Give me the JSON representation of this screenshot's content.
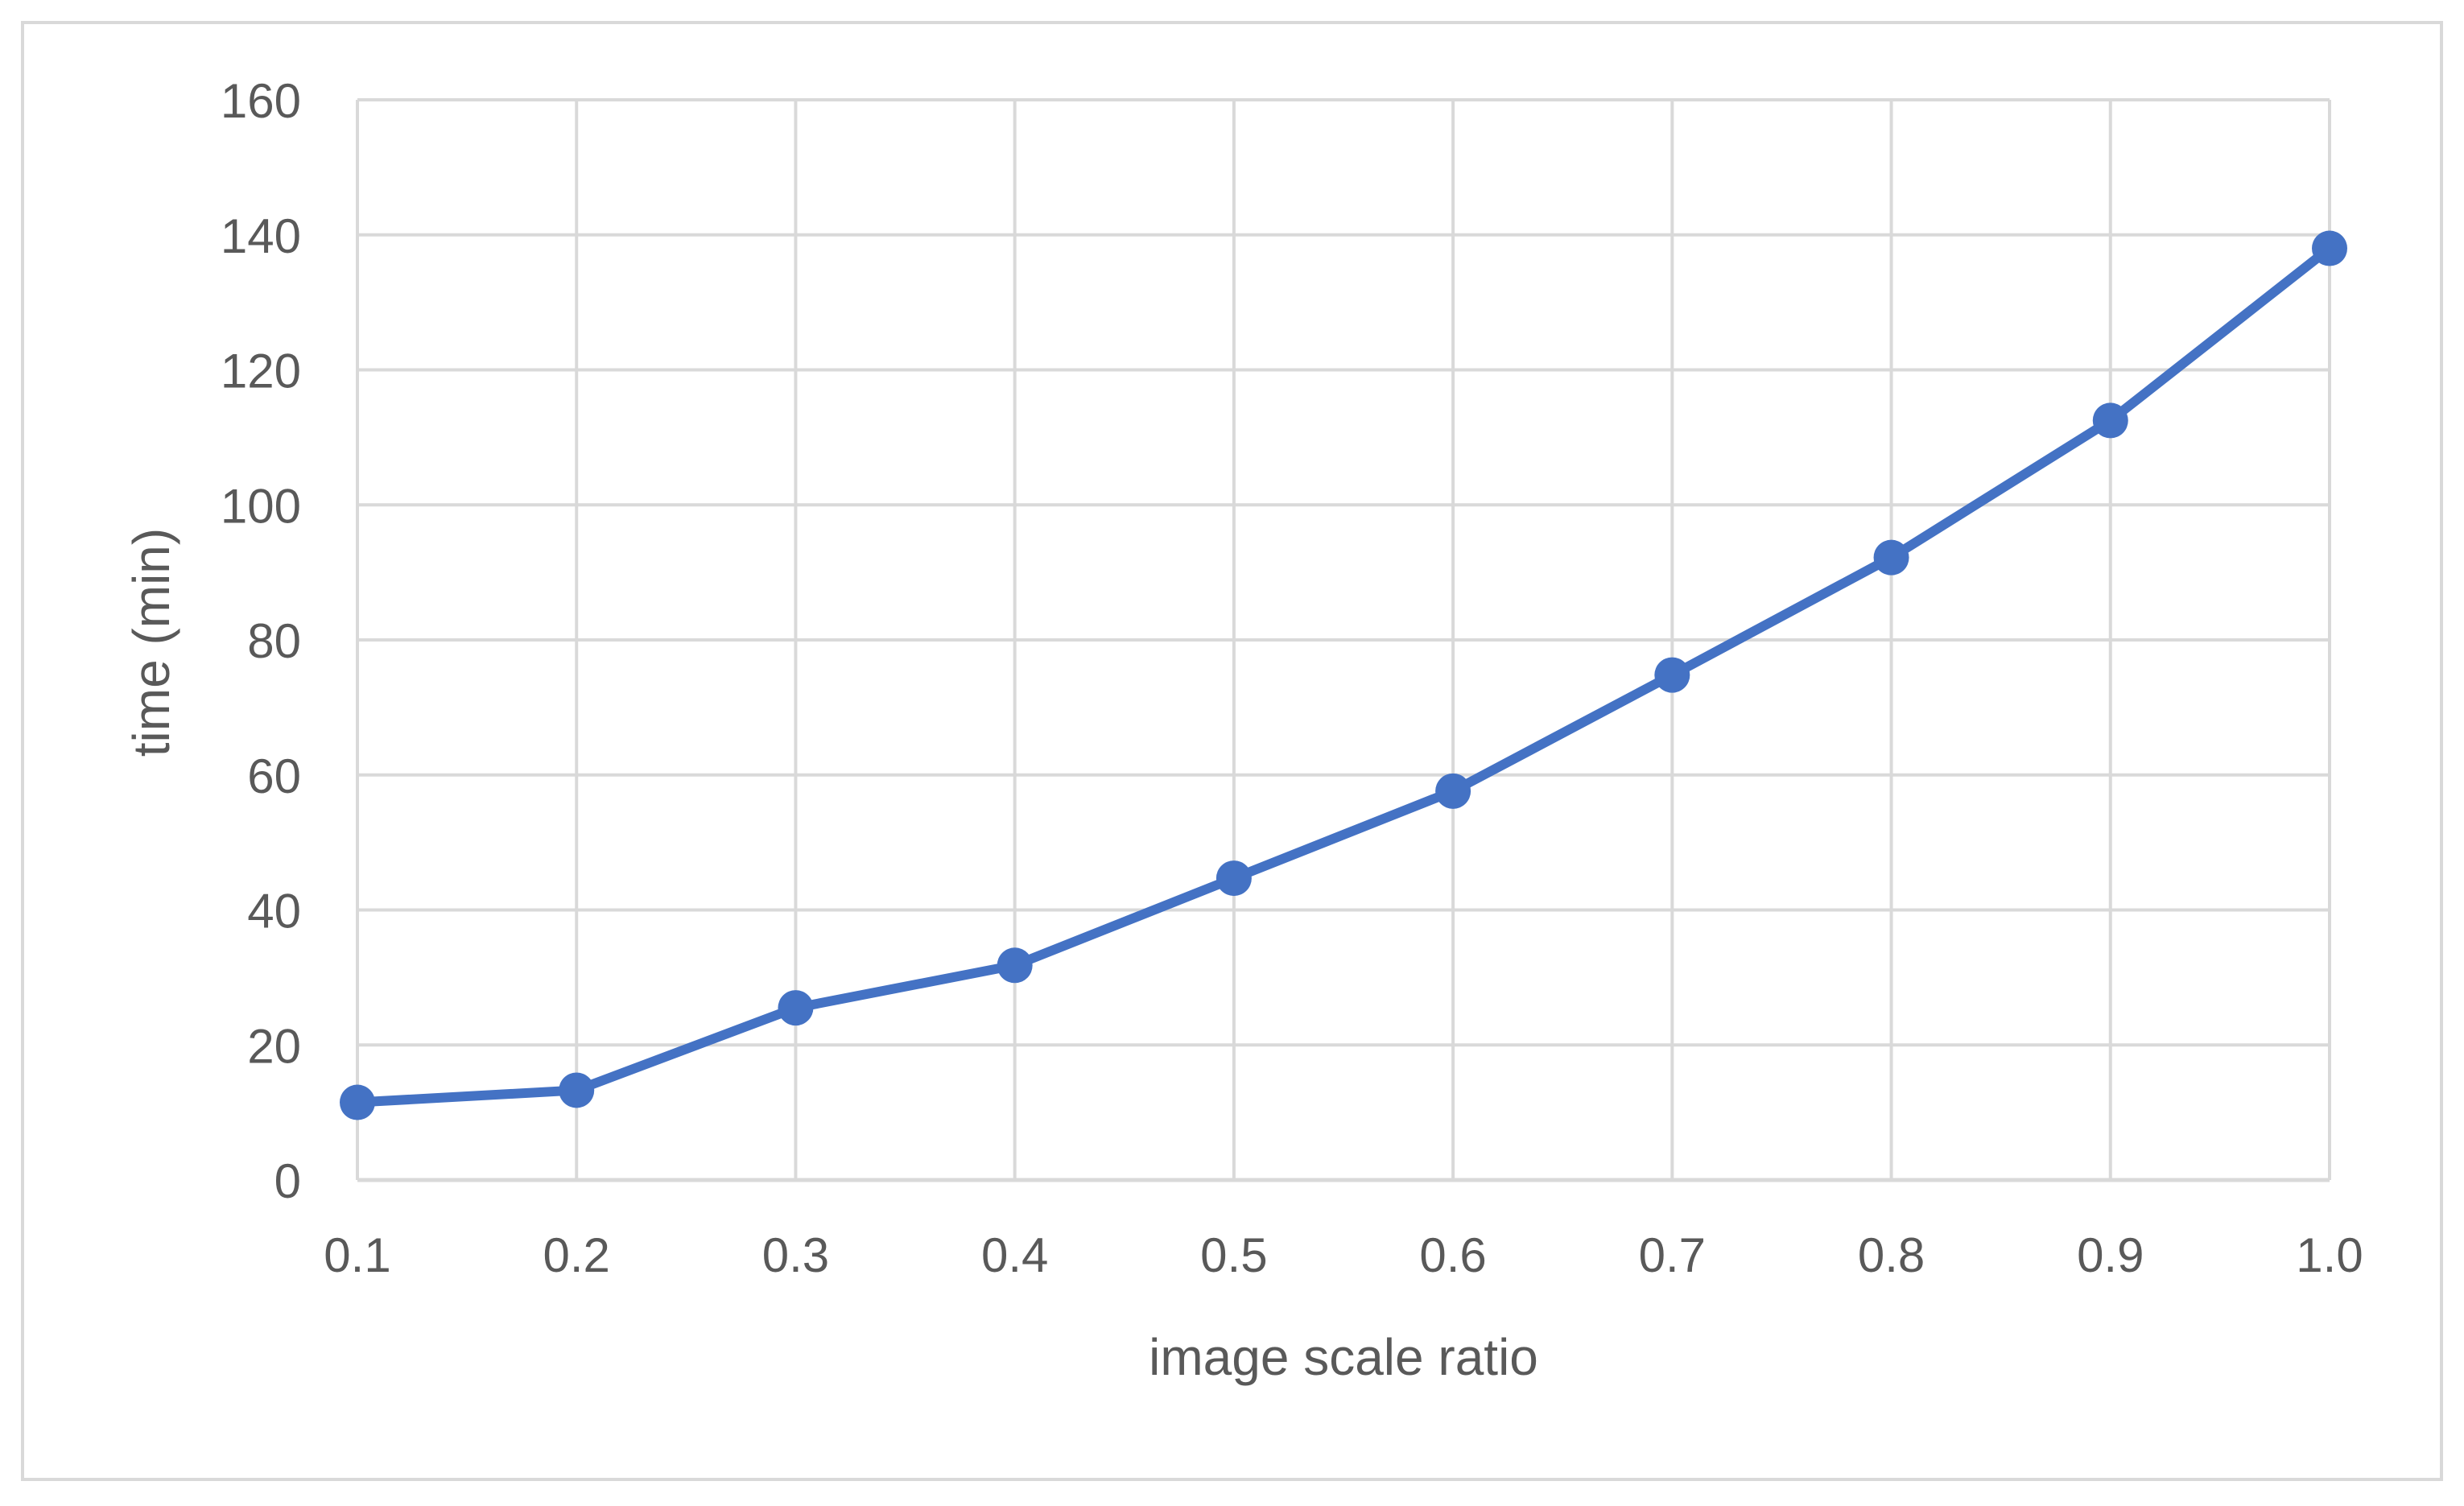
{
  "chart_data": {
    "type": "line",
    "title": "",
    "xlabel": "image scale ratio",
    "ylabel": "time (min)",
    "x": [
      0.1,
      0.2,
      0.3,
      0.4,
      0.5,
      0.6,
      0.7,
      0.8,
      0.9,
      1.0
    ],
    "x_tick_labels": [
      "0.1",
      "0.2",
      "0.3",
      "0.4",
      "0.5",
      "0.6",
      "0.7",
      "0.8",
      "0.9",
      "1.0"
    ],
    "y_ticks": [
      0,
      20,
      40,
      60,
      80,
      100,
      120,
      140,
      160
    ],
    "y_tick_labels": [
      "0",
      "20",
      "40",
      "60",
      "80",
      "100",
      "120",
      "140",
      "160"
    ],
    "xlim": [
      0.1,
      1.0
    ],
    "ylim": [
      0,
      160
    ],
    "grid": true,
    "legend": "none",
    "series": [
      {
        "values": [
          11.5,
          13.3,
          25.5,
          31.8,
          44.7,
          57.6,
          74.8,
          92.2,
          112.5,
          138.0
        ],
        "color": "#4472C4"
      }
    ],
    "colors": {
      "grid": "#d9d9d9",
      "border": "#d9d9d9",
      "text": "#595959",
      "series": "#4472C4"
    }
  }
}
